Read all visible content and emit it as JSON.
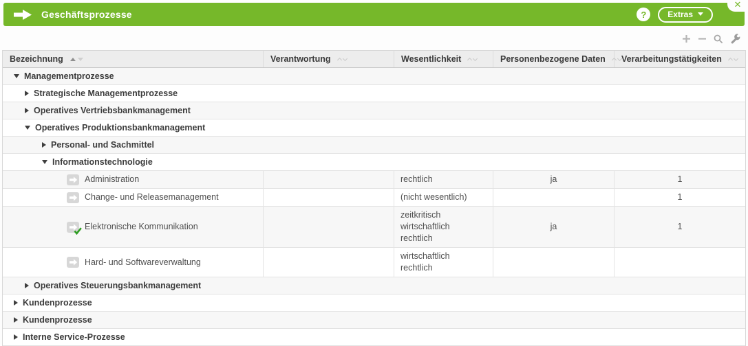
{
  "header": {
    "title": "Geschäftsprozesse",
    "help_glyph": "?",
    "extras_label": "Extras",
    "close_glyph": "✕"
  },
  "toolbar": {
    "icons": [
      "add-icon",
      "remove-icon",
      "search-icon",
      "wrench-icon"
    ]
  },
  "table": {
    "columns": [
      {
        "key": "bezeichnung",
        "label": "Bezeichnung",
        "sort_state": "ascending"
      },
      {
        "key": "verantwortung",
        "label": "Verantwortung",
        "sort_state": "unsorted"
      },
      {
        "key": "wesentlichkeit",
        "label": "Wesentlichkeit",
        "sort_state": "unsorted"
      },
      {
        "key": "personenbezogene-daten",
        "label": "Personenbezogene Daten",
        "sort_state": "unsorted"
      },
      {
        "key": "verarbeitungstaetigkeiten",
        "label": "Verarbeitungstätigkeiten",
        "sort_state": "unsorted"
      }
    ],
    "rows": [
      {
        "type": "group",
        "level": 1,
        "state": "expanded",
        "label": "Managementprozesse"
      },
      {
        "type": "group",
        "level": 2,
        "state": "collapsed",
        "label": "Strategische Managementprozesse"
      },
      {
        "type": "group",
        "level": 2,
        "state": "collapsed",
        "label": "Operatives Vertriebsbankmanagement"
      },
      {
        "type": "group",
        "level": 2,
        "state": "expanded",
        "label": "Operatives Produktionsbankmanagement"
      },
      {
        "type": "group",
        "level": 3,
        "state": "collapsed",
        "label": "Personal- und Sachmittel"
      },
      {
        "type": "group",
        "level": 3,
        "state": "expanded",
        "label": "Informationstechnologie"
      },
      {
        "type": "leaf",
        "label": "Administration",
        "checked": false,
        "verantwortung": "",
        "wesentlichkeit": [
          "rechtlich"
        ],
        "personenbezogene_daten": "ja",
        "verarbeitungstaetigkeiten": "1"
      },
      {
        "type": "leaf",
        "label": "Change- und Releasemanagement",
        "checked": false,
        "verantwortung": "",
        "wesentlichkeit": [
          "(nicht wesentlich)"
        ],
        "personenbezogene_daten": "",
        "verarbeitungstaetigkeiten": "1"
      },
      {
        "type": "leaf",
        "label": "Elektronische Kommunikation",
        "checked": true,
        "verantwortung": "",
        "wesentlichkeit": [
          "zeitkritisch",
          "wirtschaftlich",
          "rechtlich"
        ],
        "personenbezogene_daten": "ja",
        "verarbeitungstaetigkeiten": "1"
      },
      {
        "type": "leaf",
        "label": "Hard- und Softwareverwaltung",
        "checked": false,
        "verantwortung": "",
        "wesentlichkeit": [
          "wirtschaftlich",
          "rechtlich"
        ],
        "personenbezogene_daten": "",
        "verarbeitungstaetigkeiten": ""
      },
      {
        "type": "group",
        "level": 2,
        "state": "collapsed",
        "label": "Operatives Steuerungsbankmanagement"
      },
      {
        "type": "group",
        "level": 1,
        "state": "collapsed",
        "label": "Kundenprozesse"
      },
      {
        "type": "group",
        "level": 1,
        "state": "collapsed",
        "label": "Kundenprozesse"
      },
      {
        "type": "group",
        "level": 1,
        "state": "collapsed",
        "label": "Interne Service-Prozesse"
      }
    ]
  },
  "colors": {
    "accent_green": "#76b82a",
    "check_green": "#2f9e23",
    "header_bg": "#ededed",
    "row_alt_bg": "#f7f7f7",
    "border": "#e3e3e3"
  }
}
